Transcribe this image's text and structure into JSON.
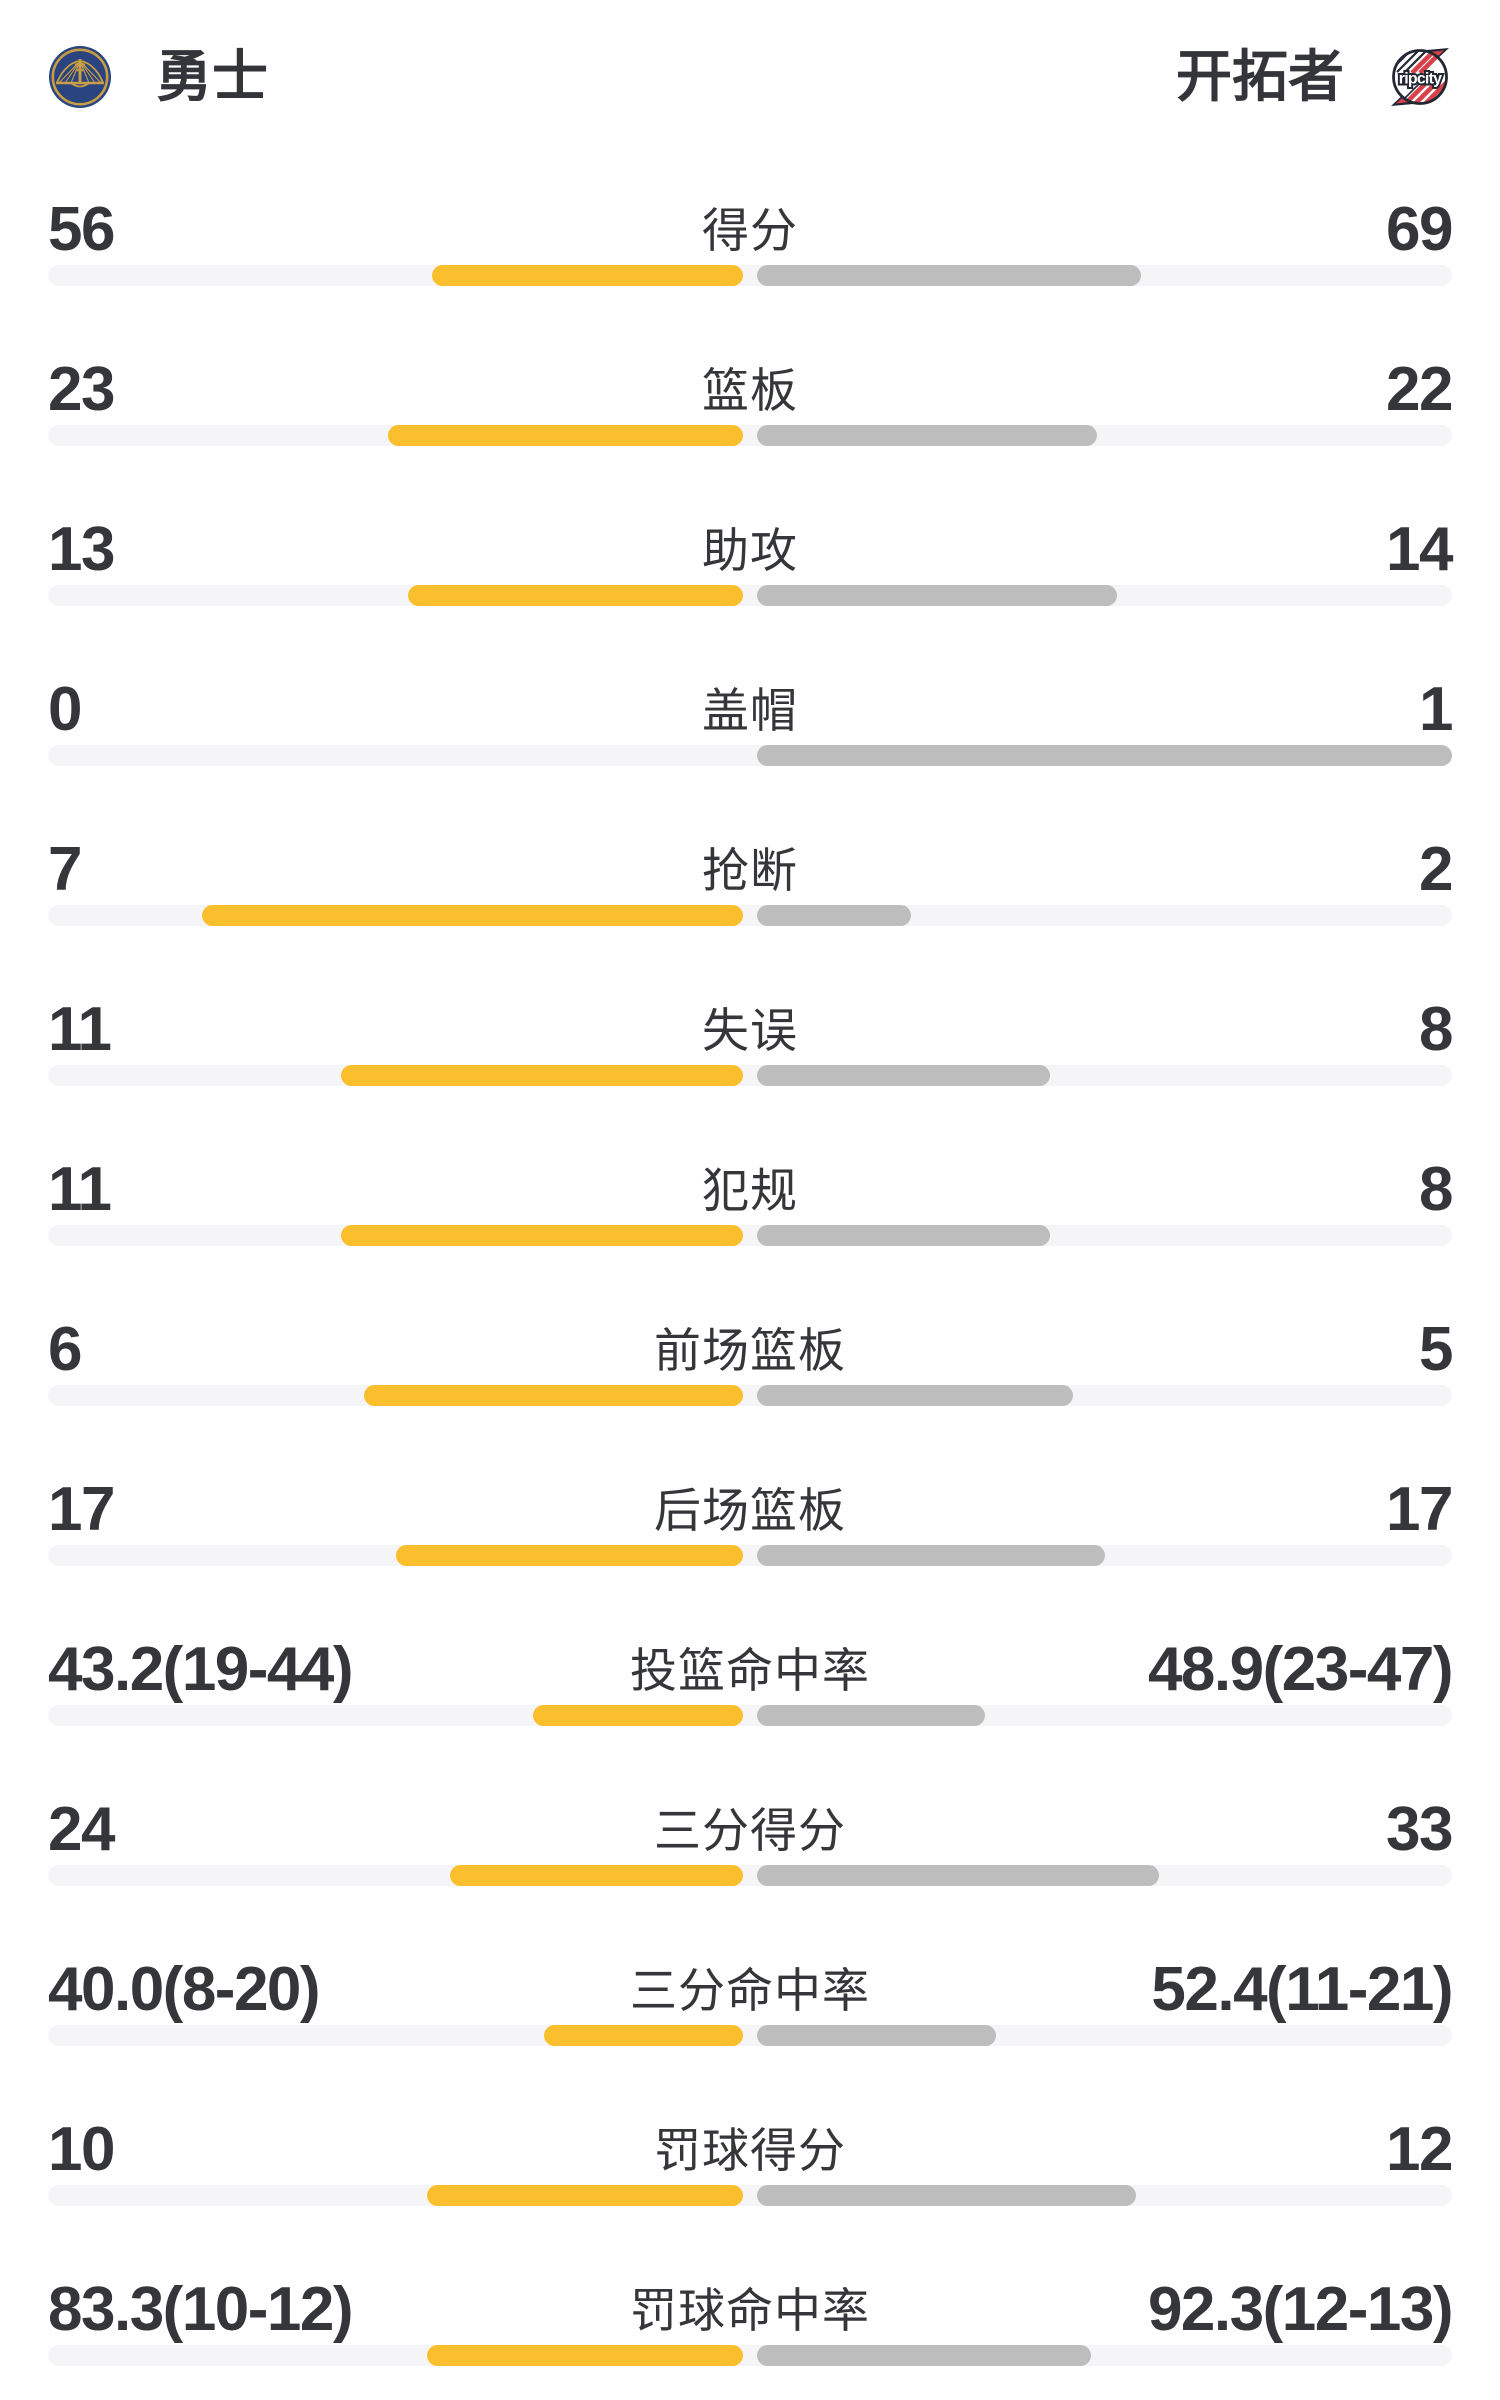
{
  "header": {
    "left_team": {
      "name": "勇士",
      "logo": "warriors"
    },
    "right_team": {
      "name": "开拓者",
      "logo": "ripcity",
      "logo_text": "ripcity"
    }
  },
  "colors": {
    "left_bar": "#fbbe2c",
    "right_bar": "#bdbdbd",
    "track": "#f5f5f7",
    "text": "#35363a",
    "warriors_blue": "#2a4480",
    "warriors_gold": "#c89d44",
    "blazers_red": "#d8404a",
    "blazers_black": "#212733"
  },
  "rows": [
    {
      "label": "得分",
      "left": "56",
      "right": "69",
      "left_num": 56,
      "right_num": 69,
      "mode": "count"
    },
    {
      "label": "篮板",
      "left": "23",
      "right": "22",
      "left_num": 23,
      "right_num": 22,
      "mode": "count"
    },
    {
      "label": "助攻",
      "left": "13",
      "right": "14",
      "left_num": 13,
      "right_num": 14,
      "mode": "count"
    },
    {
      "label": "盖帽",
      "left": "0",
      "right": "1",
      "left_num": 0,
      "right_num": 1,
      "mode": "count"
    },
    {
      "label": "抢断",
      "left": "7",
      "right": "2",
      "left_num": 7,
      "right_num": 2,
      "mode": "count"
    },
    {
      "label": "失误",
      "left": "11",
      "right": "8",
      "left_num": 11,
      "right_num": 8,
      "mode": "count"
    },
    {
      "label": "犯规",
      "left": "11",
      "right": "8",
      "left_num": 11,
      "right_num": 8,
      "mode": "count"
    },
    {
      "label": "前场篮板",
      "left": "6",
      "right": "5",
      "left_num": 6,
      "right_num": 5,
      "mode": "count"
    },
    {
      "label": "后场篮板",
      "left": "17",
      "right": "17",
      "left_num": 17,
      "right_num": 17,
      "mode": "count"
    },
    {
      "label": "投篮命中率",
      "left": "43.2(19-44)",
      "right": "48.9(23-47)",
      "left_num": 43.2,
      "right_num": 48.9,
      "mode": "percent"
    },
    {
      "label": "三分得分",
      "left": "24",
      "right": "33",
      "left_num": 24,
      "right_num": 33,
      "mode": "count"
    },
    {
      "label": "三分命中率",
      "left": "40.0(8-20)",
      "right": "52.4(11-21)",
      "left_num": 40.0,
      "right_num": 52.4,
      "mode": "percent"
    },
    {
      "label": "罚球得分",
      "left": "10",
      "right": "12",
      "left_num": 10,
      "right_num": 12,
      "mode": "count"
    },
    {
      "label": "罚球命中率",
      "left": "83.3(10-12)",
      "right": "92.3(12-13)",
      "left_num": 83.3,
      "right_num": 92.3,
      "mode": "percent"
    }
  ]
}
